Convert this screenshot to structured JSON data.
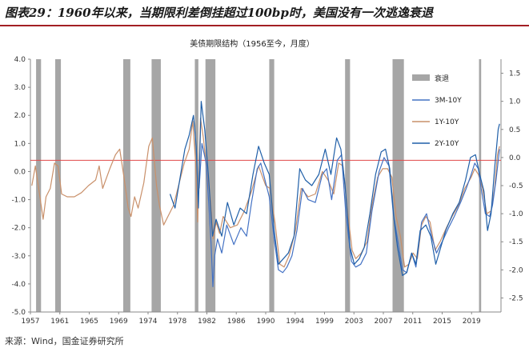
{
  "report": {
    "title": "图表29：1960年以来，当期限利差倒挂超过100bp时，美国没有一次逃逸衰退",
    "source": "来源：Wind，国金证券研究所"
  },
  "colors": {
    "title_rule": "#a31f24",
    "recession": "#a6a6a6",
    "spread_3m10y": "#4472c4",
    "spread_1y10y": "#c9906a",
    "spread_2y10y": "#1f5fa8",
    "threshold": "#e04848"
  },
  "chart_data": {
    "type": "line",
    "title": "美债期限结构（1956至今，月度）",
    "x_tick_labels": [
      "1957",
      "1961",
      "1965",
      "1969",
      "1974",
      "1978",
      "1982",
      "1986",
      "1990",
      "1994",
      "1999",
      "2003",
      "2007",
      "2011",
      "2015",
      "2019"
    ],
    "xlim": [
      1956.8,
      2023.2
    ],
    "left_axis": {
      "ylim": [
        -5.0,
        4.0
      ],
      "ticks": [
        4.0,
        3.0,
        2.0,
        1.0,
        0.0,
        -1.0,
        -2.0,
        -3.0,
        -4.0,
        -5.0
      ],
      "labels": [
        "4.0",
        "3.0",
        "2.0",
        "1.0",
        "0.0",
        "-1.0",
        "-2.0",
        "-3.0",
        "-4.0",
        "-5.0"
      ]
    },
    "right_axis": {
      "ylim": [
        -2.75,
        1.75
      ],
      "ticks": [
        1.5,
        1.0,
        0.5,
        0.0,
        -0.5,
        -1.0,
        -1.5,
        -2.0,
        -2.5
      ],
      "labels": [
        "1.5",
        "1.0",
        "0.5",
        "0.0",
        "-0.5",
        "-1.0",
        "-1.5",
        "-2.0",
        "-2.5"
      ]
    },
    "threshold_line": {
      "axis": "left",
      "y": 0.4
    },
    "legend": {
      "position": "right",
      "items": [
        "衰退",
        "3M-10Y",
        "1Y-10Y",
        "2Y-10Y"
      ]
    },
    "recessions": [
      [
        1957.6,
        1958.3
      ],
      [
        1960.3,
        1961.1
      ],
      [
        1969.9,
        1970.9
      ],
      [
        1973.9,
        1975.2
      ],
      [
        1980.0,
        1980.5
      ],
      [
        1981.5,
        1982.9
      ],
      [
        1990.5,
        1991.2
      ],
      [
        2001.2,
        2001.9
      ],
      [
        2007.9,
        2009.5
      ],
      [
        2020.1,
        2020.4
      ]
    ],
    "series": [
      {
        "name": "1Y-10Y",
        "axis": "left",
        "points": [
          [
            1957.0,
            -0.5
          ],
          [
            1957.5,
            0.2
          ],
          [
            1958.2,
            -1.0
          ],
          [
            1958.6,
            -1.7
          ],
          [
            1959.0,
            -0.9
          ],
          [
            1959.6,
            -0.6
          ],
          [
            1960.2,
            0.3
          ],
          [
            1960.7,
            0.2
          ],
          [
            1961.2,
            -0.8
          ],
          [
            1962.0,
            -0.9
          ],
          [
            1963.0,
            -0.9
          ],
          [
            1964.0,
            -0.75
          ],
          [
            1965.0,
            -0.5
          ],
          [
            1966.0,
            -0.3
          ],
          [
            1966.5,
            0.2
          ],
          [
            1967.0,
            -0.6
          ],
          [
            1968.0,
            0.1
          ],
          [
            1968.8,
            0.6
          ],
          [
            1969.4,
            0.8
          ],
          [
            1970.0,
            -0.2
          ],
          [
            1970.6,
            -1.3
          ],
          [
            1971.0,
            -1.6
          ],
          [
            1971.5,
            -0.9
          ],
          [
            1972.0,
            -1.3
          ],
          [
            1972.8,
            -0.4
          ],
          [
            1973.5,
            0.9
          ],
          [
            1974.0,
            1.2
          ],
          [
            1974.6,
            -0.5
          ],
          [
            1975.0,
            -1.2
          ],
          [
            1975.6,
            -1.9
          ],
          [
            1976.2,
            -1.6
          ],
          [
            1977.0,
            -1.2
          ],
          [
            1977.8,
            -0.4
          ],
          [
            1978.5,
            0.3
          ],
          [
            1979.2,
            0.8
          ],
          [
            1979.7,
            1.8
          ],
          [
            1980.1,
            0.4
          ],
          [
            1980.4,
            -1.8
          ],
          [
            1980.8,
            1.9
          ],
          [
            1981.2,
            1.2
          ],
          [
            1981.6,
            0.2
          ],
          [
            1982.2,
            -1.0
          ],
          [
            1982.6,
            -2.4
          ],
          [
            1983.0,
            -1.8
          ],
          [
            1983.5,
            -2.2
          ],
          [
            1984.0,
            -1.6
          ],
          [
            1985.0,
            -2.0
          ],
          [
            1986.0,
            -1.9
          ],
          [
            1987.0,
            -1.4
          ],
          [
            1988.0,
            -0.7
          ],
          [
            1989.0,
            0.2
          ],
          [
            1990.0,
            -0.5
          ],
          [
            1990.6,
            -0.6
          ],
          [
            1991.3,
            -1.8
          ],
          [
            1992.0,
            -3.3
          ],
          [
            1992.6,
            -3.4
          ],
          [
            1993.3,
            -3.0
          ],
          [
            1994.2,
            -2.1
          ],
          [
            1995.0,
            -0.6
          ],
          [
            1996.0,
            -0.9
          ],
          [
            1997.0,
            -0.8
          ],
          [
            1998.0,
            0.0
          ],
          [
            1998.8,
            -0.3
          ],
          [
            1999.6,
            -0.8
          ],
          [
            2000.3,
            0.3
          ],
          [
            2000.9,
            0.2
          ],
          [
            2001.5,
            -1.3
          ],
          [
            2002.2,
            -2.8
          ],
          [
            2002.7,
            -3.1
          ],
          [
            2003.5,
            -2.9
          ],
          [
            2004.3,
            -2.5
          ],
          [
            2005.0,
            -1.2
          ],
          [
            2005.8,
            -0.2
          ],
          [
            2006.5,
            0.1
          ],
          [
            2007.2,
            0.1
          ],
          [
            2007.8,
            -0.2
          ],
          [
            2008.4,
            -1.6
          ],
          [
            2009.0,
            -2.3
          ],
          [
            2009.6,
            -3.4
          ],
          [
            2010.2,
            -3.3
          ],
          [
            2010.8,
            -2.9
          ],
          [
            2011.4,
            -3.1
          ],
          [
            2012.0,
            -1.9
          ],
          [
            2012.6,
            -1.6
          ],
          [
            2013.2,
            -1.8
          ],
          [
            2013.9,
            -2.8
          ],
          [
            2014.6,
            -2.5
          ],
          [
            2015.5,
            -2.0
          ],
          [
            2016.3,
            -1.6
          ],
          [
            2017.2,
            -1.2
          ],
          [
            2018.1,
            -0.6
          ],
          [
            2019.0,
            -0.2
          ],
          [
            2019.5,
            0.1
          ],
          [
            2020.0,
            -0.1
          ],
          [
            2020.6,
            -0.6
          ],
          [
            2021.2,
            -1.5
          ],
          [
            2021.8,
            -1.4
          ],
          [
            2022.3,
            -0.6
          ],
          [
            2022.7,
            0.6
          ],
          [
            2023.0,
            0.9
          ]
        ]
      },
      {
        "name": "3M-10Y",
        "axis": "left",
        "points": [
          [
            1980.6,
            -0.6
          ],
          [
            1981.0,
            1.0
          ],
          [
            1981.6,
            0.3
          ],
          [
            1982.0,
            -1.3
          ],
          [
            1982.3,
            -2.6
          ],
          [
            1982.55,
            -4.1
          ],
          [
            1982.8,
            -3.0
          ],
          [
            1983.2,
            -2.4
          ],
          [
            1983.8,
            -2.9
          ],
          [
            1984.5,
            -1.9
          ],
          [
            1985.5,
            -2.6
          ],
          [
            1986.5,
            -2.0
          ],
          [
            1987.3,
            -2.3
          ],
          [
            1988.0,
            -1.1
          ],
          [
            1988.8,
            0.1
          ],
          [
            1989.3,
            0.3
          ],
          [
            1990.0,
            -0.4
          ],
          [
            1990.5,
            -0.9
          ],
          [
            1991.2,
            -2.4
          ],
          [
            1991.8,
            -3.5
          ],
          [
            1992.4,
            -3.6
          ],
          [
            1993.0,
            -3.4
          ],
          [
            1993.7,
            -3.0
          ],
          [
            1994.4,
            -2.1
          ],
          [
            1995.2,
            -0.6
          ],
          [
            1996.0,
            -1.0
          ],
          [
            1997.0,
            -1.1
          ],
          [
            1998.0,
            -0.1
          ],
          [
            1998.6,
            0.1
          ],
          [
            1999.3,
            -1.0
          ],
          [
            2000.1,
            0.4
          ],
          [
            2000.7,
            0.6
          ],
          [
            2001.3,
            -1.5
          ],
          [
            2002.1,
            -3.2
          ],
          [
            2002.7,
            -3.4
          ],
          [
            2003.4,
            -3.3
          ],
          [
            2004.2,
            -2.9
          ],
          [
            2005.0,
            -1.4
          ],
          [
            2006.0,
            0.0
          ],
          [
            2006.7,
            0.5
          ],
          [
            2007.4,
            0.2
          ],
          [
            2008.0,
            -1.5
          ],
          [
            2008.6,
            -2.4
          ],
          [
            2009.3,
            -3.5
          ],
          [
            2009.9,
            -3.6
          ],
          [
            2010.6,
            -2.9
          ],
          [
            2011.2,
            -3.4
          ],
          [
            2012.0,
            -1.8
          ],
          [
            2012.7,
            -1.5
          ],
          [
            2013.4,
            -2.3
          ],
          [
            2014.1,
            -2.9
          ],
          [
            2014.9,
            -2.5
          ],
          [
            2015.8,
            -2.0
          ],
          [
            2016.6,
            -1.6
          ],
          [
            2017.5,
            -1.1
          ],
          [
            2018.3,
            -0.6
          ],
          [
            2019.0,
            -0.1
          ],
          [
            2019.5,
            0.3
          ],
          [
            2020.0,
            0.1
          ],
          [
            2020.4,
            -0.6
          ],
          [
            2021.0,
            -1.5
          ],
          [
            2021.6,
            -1.6
          ],
          [
            2022.0,
            -1.2
          ],
          [
            2022.5,
            -0.3
          ],
          [
            2023.0,
            0.8
          ]
        ]
      },
      {
        "name": "2Y-10Y",
        "axis": "right",
        "points": [
          [
            1976.5,
            -0.65
          ],
          [
            1977.2,
            -0.9
          ],
          [
            1978.0,
            -0.3
          ],
          [
            1978.6,
            0.15
          ],
          [
            1979.2,
            0.4
          ],
          [
            1979.8,
            0.75
          ],
          [
            1980.2,
            0.2
          ],
          [
            1980.5,
            -0.9
          ],
          [
            1980.9,
            1.0
          ],
          [
            1981.4,
            0.5
          ],
          [
            1981.9,
            -0.3
          ],
          [
            1982.5,
            -1.4
          ],
          [
            1983.0,
            -1.1
          ],
          [
            1983.8,
            -1.4
          ],
          [
            1984.6,
            -0.8
          ],
          [
            1985.5,
            -1.2
          ],
          [
            1986.4,
            -0.9
          ],
          [
            1987.3,
            -1.0
          ],
          [
            1988.2,
            -0.3
          ],
          [
            1989.0,
            0.2
          ],
          [
            1989.8,
            -0.1
          ],
          [
            1990.5,
            -0.3
          ],
          [
            1991.2,
            -1.3
          ],
          [
            1991.8,
            -1.9
          ],
          [
            1992.5,
            -1.8
          ],
          [
            1993.2,
            -1.7
          ],
          [
            1994.0,
            -1.4
          ],
          [
            1994.8,
            -0.2
          ],
          [
            1995.6,
            -0.4
          ],
          [
            1996.5,
            -0.5
          ],
          [
            1997.5,
            -0.3
          ],
          [
            1998.4,
            0.15
          ],
          [
            1999.2,
            -0.3
          ],
          [
            2000.0,
            0.35
          ],
          [
            2000.6,
            0.15
          ],
          [
            2001.2,
            -0.5
          ],
          [
            2001.9,
            -1.6
          ],
          [
            2002.5,
            -1.9
          ],
          [
            2003.2,
            -1.8
          ],
          [
            2003.9,
            -1.6
          ],
          [
            2004.7,
            -1.0
          ],
          [
            2005.5,
            -0.3
          ],
          [
            2006.3,
            0.1
          ],
          [
            2006.9,
            0.15
          ],
          [
            2007.5,
            -0.2
          ],
          [
            2008.1,
            -1.1
          ],
          [
            2008.6,
            -1.6
          ],
          [
            2009.3,
            -2.1
          ],
          [
            2009.9,
            -2.05
          ],
          [
            2010.6,
            -1.7
          ],
          [
            2011.2,
            -1.9
          ],
          [
            2011.8,
            -1.3
          ],
          [
            2012.6,
            -1.2
          ],
          [
            2013.3,
            -1.4
          ],
          [
            2014.0,
            -1.9
          ],
          [
            2014.7,
            -1.6
          ],
          [
            2015.4,
            -1.3
          ],
          [
            2016.4,
            -1.0
          ],
          [
            2017.3,
            -0.8
          ],
          [
            2018.2,
            -0.4
          ],
          [
            2018.9,
            0.0
          ],
          [
            2019.6,
            0.05
          ],
          [
            2020.2,
            -0.3
          ],
          [
            2020.8,
            -0.6
          ],
          [
            2021.3,
            -1.3
          ],
          [
            2021.8,
            -1.0
          ],
          [
            2022.3,
            -0.2
          ],
          [
            2022.8,
            0.5
          ],
          [
            2023.0,
            0.6
          ]
        ]
      }
    ]
  }
}
